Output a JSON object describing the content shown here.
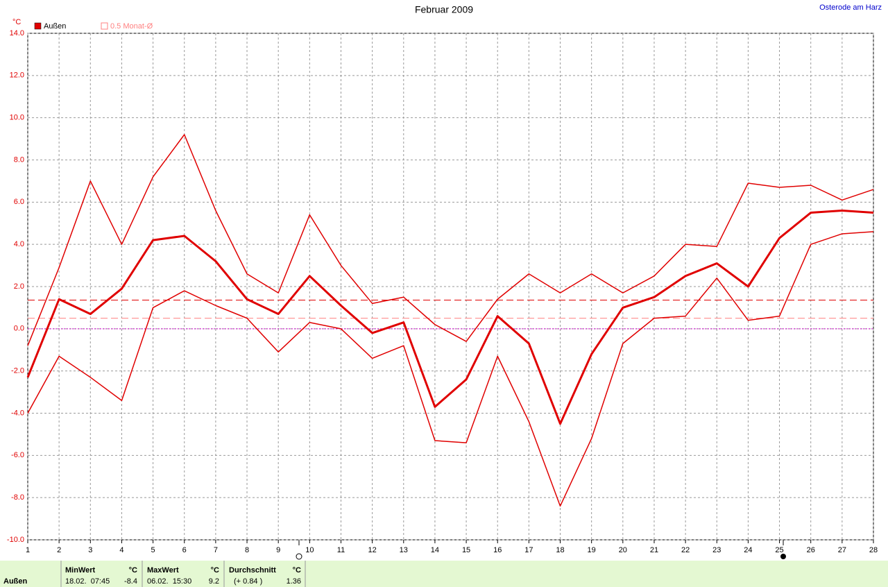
{
  "header": {
    "title": "Februar 2009",
    "location": "Osterode am Harz"
  },
  "chart_data": {
    "type": "line",
    "y_unit": "°C",
    "x": [
      1,
      2,
      3,
      4,
      5,
      6,
      7,
      8,
      9,
      10,
      11,
      12,
      13,
      14,
      15,
      16,
      17,
      18,
      19,
      20,
      21,
      22,
      23,
      24,
      25,
      26,
      27,
      28
    ],
    "xlim": [
      1,
      28
    ],
    "xticks": [
      1,
      2,
      3,
      4,
      5,
      6,
      7,
      8,
      9,
      10,
      11,
      12,
      13,
      14,
      15,
      16,
      17,
      18,
      19,
      20,
      21,
      22,
      23,
      24,
      25,
      26,
      27,
      28
    ],
    "ylim": [
      -10,
      14
    ],
    "yticks": [
      {
        "value": -10,
        "label": "-10.0"
      },
      {
        "value": -8,
        "label": "-8.0"
      },
      {
        "value": -6,
        "label": "-6.0"
      },
      {
        "value": -4,
        "label": "-4.0"
      },
      {
        "value": -2,
        "label": "-2.0"
      },
      {
        "value": 0,
        "label": "0.0"
      },
      {
        "value": 2,
        "label": "2.0"
      },
      {
        "value": 4,
        "label": "4.0"
      },
      {
        "value": 6,
        "label": "6.0"
      },
      {
        "value": 8,
        "label": "8.0"
      },
      {
        "value": 10,
        "label": "10.0"
      },
      {
        "value": 12,
        "label": "12.0"
      },
      {
        "value": 14,
        "label": "14.0"
      }
    ],
    "grid": true,
    "zero_line_color": "#cc00cc",
    "series": [
      {
        "name": "Außen",
        "color": "#e00000",
        "values": [
          -2.3,
          1.4,
          0.7,
          1.9,
          4.2,
          4.4,
          3.2,
          1.4,
          0.7,
          2.5,
          1.1,
          -0.2,
          0.3,
          -3.7,
          -2.4,
          0.6,
          -0.7,
          -4.5,
          -1.2,
          1.0,
          1.5,
          2.5,
          3.1,
          2.0,
          4.3,
          5.5,
          5.6,
          5.5
        ],
        "max": [
          -0.8,
          2.9,
          7.0,
          4.0,
          7.2,
          9.2,
          5.6,
          2.6,
          1.7,
          5.4,
          3.0,
          1.2,
          1.5,
          0.2,
          -0.6,
          1.4,
          2.6,
          1.7,
          2.6,
          1.7,
          2.5,
          4.0,
          3.9,
          6.9,
          6.7,
          6.8,
          6.1,
          6.6
        ],
        "min": [
          -4.0,
          -1.3,
          -2.3,
          -3.4,
          1.0,
          1.8,
          1.1,
          0.5,
          -1.1,
          0.3,
          0.0,
          -1.4,
          -0.8,
          -5.3,
          -5.4,
          -1.3,
          -4.4,
          -8.4,
          -5.2,
          -0.7,
          0.5,
          0.6,
          2.4,
          0.4,
          0.6,
          4.0,
          4.5,
          4.6
        ]
      }
    ],
    "reference_lines": [
      {
        "name": "0.5 Monat-Ø",
        "color": "#ff8080",
        "value": 0.5
      }
    ]
  },
  "table": {
    "row_label": "Außen",
    "columns": [
      {
        "header": "MinWert",
        "unit": "°C",
        "when": "18.02.  07:45",
        "value": -8.4
      },
      {
        "header": "MaxWert",
        "unit": "°C",
        "when": "06.02.  15:30",
        "value": 9.2
      },
      {
        "header": "Durchschnitt",
        "unit": "°C",
        "when": "(+ 0.84 )",
        "value": 1.36
      }
    ]
  }
}
